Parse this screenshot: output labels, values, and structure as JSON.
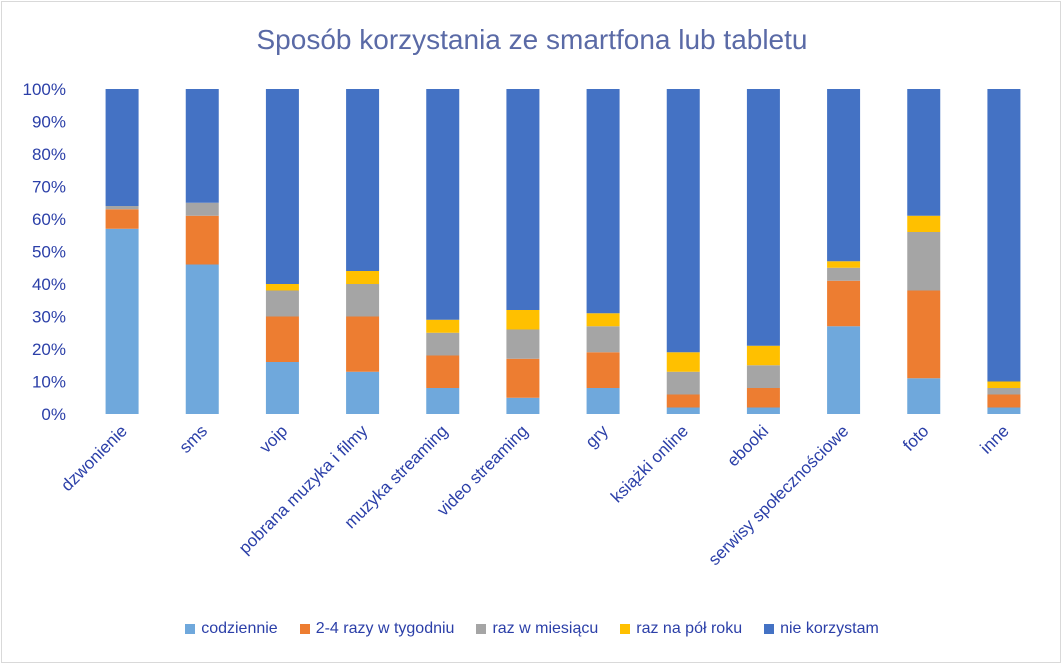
{
  "chart_data": {
    "type": "bar",
    "stacked": true,
    "percent": true,
    "title": "Sposób korzystania ze smartfona lub tabletu",
    "xlabel": "",
    "ylabel": "",
    "ylim": [
      0,
      100
    ],
    "yticks": [
      "0%",
      "10%",
      "20%",
      "30%",
      "40%",
      "50%",
      "60%",
      "70%",
      "80%",
      "90%",
      "100%"
    ],
    "grid": false,
    "legend_position": "bottom",
    "categories": [
      "dzwonienie",
      "sms",
      "voip",
      "pobrana muzyka i filmy",
      "muzyka streaming",
      "video streaming",
      "gry",
      "książki online",
      "ebooki",
      "serwisy społecznościowe",
      "foto",
      "inne"
    ],
    "series": [
      {
        "name": "codziennie",
        "color": "#6fa8dc",
        "values": [
          57,
          46,
          16,
          13,
          8,
          5,
          8,
          2,
          2,
          27,
          11,
          2
        ]
      },
      {
        "name": "2-4 razy w tygodniu",
        "color": "#ed7d31",
        "values": [
          6,
          15,
          14,
          17,
          10,
          12,
          11,
          4,
          6,
          14,
          27,
          4
        ]
      },
      {
        "name": "raz w miesiącu",
        "color": "#a5a5a5",
        "values": [
          1,
          4,
          8,
          10,
          7,
          9,
          8,
          7,
          7,
          4,
          18,
          2
        ]
      },
      {
        "name": "raz na pół roku",
        "color": "#ffc000",
        "values": [
          0,
          0,
          2,
          4,
          4,
          6,
          4,
          6,
          6,
          2,
          5,
          2
        ]
      },
      {
        "name": "nie korzystam",
        "color": "#4472c4",
        "values": [
          36,
          35,
          60,
          56,
          71,
          68,
          69,
          81,
          79,
          53,
          39,
          90
        ]
      }
    ]
  }
}
